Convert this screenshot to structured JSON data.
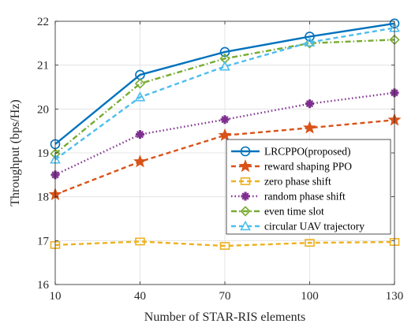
{
  "chart_data": {
    "type": "line",
    "xlabel": "Number of STAR-RIS elements",
    "ylabel": "Throughput (bps/Hz)",
    "x": [
      10,
      40,
      70,
      100,
      130
    ],
    "xlim": [
      10,
      130
    ],
    "ylim": [
      16,
      22
    ],
    "xticks": [
      "10",
      "40",
      "70",
      "100",
      "130"
    ],
    "yticks": [
      "16",
      "17",
      "18",
      "19",
      "20",
      "21",
      "22"
    ],
    "grid": true,
    "legend_position": "center-right",
    "series": [
      {
        "name": "LRCPPO(proposed)",
        "color": "#0072BD",
        "dash": "solid",
        "marker": "circle",
        "values": [
          19.2,
          20.78,
          21.3,
          21.65,
          21.95
        ]
      },
      {
        "name": "reward shaping PPO",
        "color": "#D95319",
        "dash": "dashed",
        "marker": "star",
        "values": [
          18.05,
          18.8,
          19.4,
          19.57,
          19.75
        ]
      },
      {
        "name": "zero phase shift",
        "color": "#EDB120",
        "dash": "dashed",
        "marker": "square",
        "values": [
          16.9,
          16.98,
          16.88,
          16.95,
          16.97
        ]
      },
      {
        "name": "random phase shift",
        "color": "#7E2F8E",
        "dash": "dotted",
        "marker": "plus",
        "values": [
          18.5,
          19.42,
          19.76,
          20.12,
          20.37
        ]
      },
      {
        "name": "even time slot",
        "color": "#77AC30",
        "dash": "dashdot",
        "marker": "diamond",
        "values": [
          18.98,
          20.58,
          21.15,
          21.5,
          21.58
        ]
      },
      {
        "name": "circular UAV trajectory",
        "color": "#4DBEEE",
        "dash": "dashed",
        "marker": "triangle",
        "values": [
          18.85,
          20.27,
          20.97,
          21.52,
          21.85
        ]
      }
    ]
  }
}
